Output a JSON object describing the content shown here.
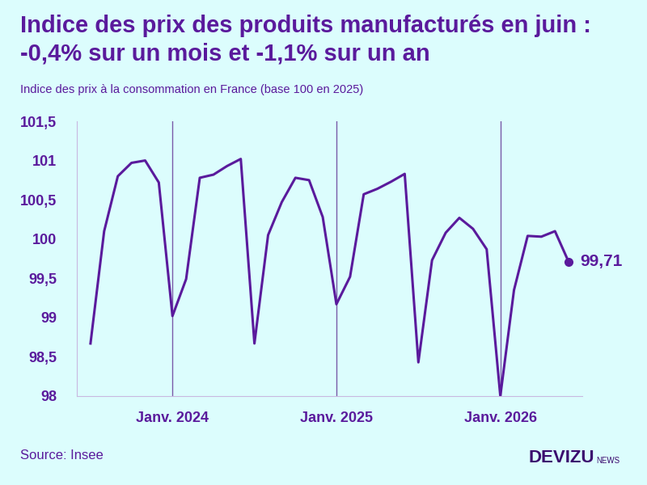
{
  "chart_data": {
    "type": "line",
    "title": "Indice des prix des produits manufacturés en juin :\n-0,4% sur un mois et -1,1% sur un an",
    "subtitle": "Indice des prix à la consommation en France (base 100 en 2025)",
    "source": "Source: Insee",
    "brand": "DEVIZU",
    "brand_sub": "NEWS",
    "categories": [
      null,
      null,
      null,
      null,
      null,
      null,
      "Janv. 2024",
      null,
      null,
      null,
      null,
      null,
      null,
      null,
      null,
      null,
      null,
      null,
      "Janv. 2025",
      null,
      null,
      null,
      null,
      null,
      null,
      null,
      null,
      null,
      null,
      null,
      "Janv. 2026",
      null,
      null,
      null,
      null,
      null
    ],
    "series": [
      {
        "name": "Indice des prix des produits manufacturés",
        "color": "#5a1a9c",
        "values": [
          98.67,
          100.1,
          100.8,
          100.97,
          101.0,
          100.72,
          99.02,
          99.49,
          100.78,
          100.82,
          100.93,
          101.02,
          98.67,
          100.05,
          100.47,
          100.78,
          100.75,
          100.28,
          99.17,
          99.52,
          100.57,
          100.64,
          100.73,
          100.83,
          98.43,
          99.73,
          100.08,
          100.27,
          100.13,
          99.87,
          98.0,
          99.35,
          100.04,
          100.03,
          100.1,
          99.71
        ]
      }
    ],
    "annotations": [
      {
        "index": 35,
        "text": "99,71"
      }
    ],
    "ylim": [
      98,
      101.5
    ],
    "yticks": [
      98,
      {
        "value": 98.5,
        "label": "98,5"
      },
      99,
      {
        "value": 99.5,
        "label": "99,5"
      },
      100,
      {
        "value": 100.5,
        "label": "100,5"
      },
      101,
      {
        "value": 101.5,
        "label": "101,5"
      }
    ],
    "grid": "x"
  }
}
